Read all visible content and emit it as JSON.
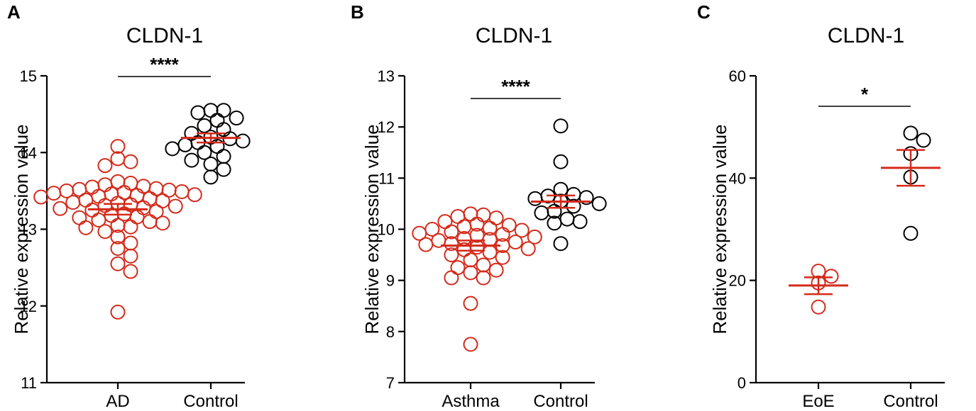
{
  "colors": {
    "disease": "#d42a1a",
    "control": "#000000",
    "mean_line": "#d42a1a"
  },
  "chart_data": [
    {
      "type": "scatter",
      "panel": "A",
      "title": "CLDN-1",
      "ylabel": "Relative expression value",
      "ylim": [
        11,
        15
      ],
      "yticks": [
        11,
        12,
        13,
        14,
        15
      ],
      "categories": [
        "AD",
        "Control"
      ],
      "significance": "****",
      "series": [
        {
          "category": "AD",
          "mean": 13.26,
          "sem_low": 13.19,
          "sem_high": 13.33,
          "values": [
            14.08,
            13.92,
            13.88,
            13.83,
            13.62,
            13.6,
            13.58,
            13.56,
            13.55,
            13.53,
            13.52,
            13.51,
            13.5,
            13.49,
            13.48,
            13.47,
            13.46,
            13.45,
            13.44,
            13.43,
            13.42,
            13.4,
            13.38,
            13.37,
            13.35,
            13.34,
            13.32,
            13.31,
            13.3,
            13.28,
            13.27,
            13.25,
            13.23,
            13.2,
            13.18,
            13.16,
            13.15,
            13.12,
            13.1,
            13.08,
            13.05,
            13.03,
            13.02,
            12.97,
            12.9,
            12.82,
            12.75,
            12.65,
            12.55,
            12.45,
            11.92
          ]
        },
        {
          "category": "Control",
          "mean": 14.19,
          "sem_low": 14.13,
          "sem_high": 14.25,
          "values": [
            14.55,
            14.55,
            14.52,
            14.45,
            14.42,
            14.35,
            14.3,
            14.25,
            14.2,
            14.18,
            14.15,
            14.13,
            14.1,
            14.08,
            14.05,
            14.0,
            13.95,
            13.9,
            13.85,
            13.78,
            13.68
          ]
        }
      ]
    },
    {
      "type": "scatter",
      "panel": "B",
      "title": "CLDN-1",
      "ylabel": "Relative expression value",
      "ylim": [
        7,
        13
      ],
      "yticks": [
        7,
        8,
        9,
        10,
        11,
        12,
        13
      ],
      "categories": [
        "Asthma",
        "Control"
      ],
      "significance": "****",
      "series": [
        {
          "category": "Asthma",
          "mean": 9.68,
          "sem_low": 9.58,
          "sem_high": 9.78,
          "values": [
            10.3,
            10.28,
            10.25,
            10.22,
            10.15,
            10.1,
            10.08,
            10.05,
            10.02,
            10.0,
            9.98,
            9.95,
            9.92,
            9.9,
            9.88,
            9.85,
            9.82,
            9.8,
            9.78,
            9.75,
            9.72,
            9.7,
            9.68,
            9.65,
            9.62,
            9.6,
            9.55,
            9.5,
            9.45,
            9.4,
            9.3,
            9.25,
            9.2,
            9.15,
            9.05,
            9.05,
            8.55,
            7.75
          ]
        },
        {
          "category": "Control",
          "mean": 10.54,
          "sem_low": 10.42,
          "sem_high": 10.66,
          "values": [
            12.02,
            11.32,
            10.78,
            10.68,
            10.65,
            10.62,
            10.6,
            10.55,
            10.5,
            10.45,
            10.35,
            10.32,
            10.2,
            10.15,
            10.12,
            9.72
          ]
        }
      ]
    },
    {
      "type": "scatter",
      "panel": "C",
      "title": "CLDN-1",
      "ylabel": "Relative expression value",
      "ylim": [
        0,
        60
      ],
      "yticks": [
        0,
        20,
        40,
        60
      ],
      "categories": [
        "EoE",
        "Control"
      ],
      "significance": "*",
      "series": [
        {
          "category": "EoE",
          "mean": 19.0,
          "sem_low": 17.3,
          "sem_high": 20.6,
          "values": [
            21.8,
            20.8,
            19.5,
            14.8
          ]
        },
        {
          "category": "Control",
          "mean": 42.0,
          "sem_low": 38.5,
          "sem_high": 45.5,
          "values": [
            48.8,
            47.4,
            44.8,
            40.2,
            29.2
          ]
        }
      ]
    }
  ]
}
